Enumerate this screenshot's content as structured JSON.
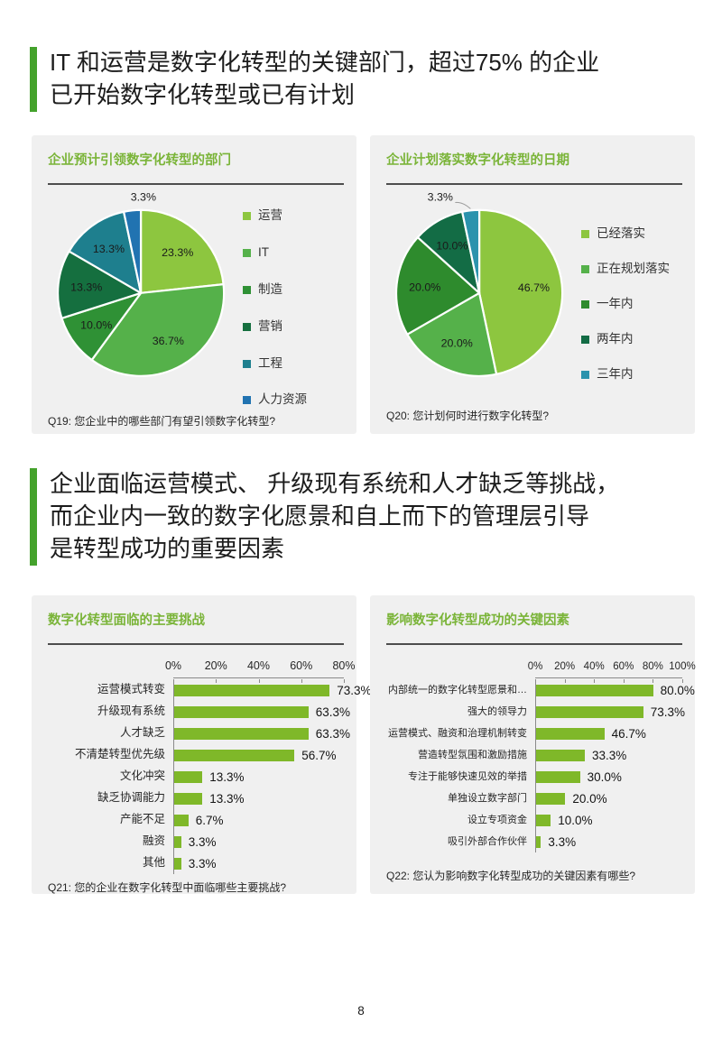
{
  "page": {
    "number": "8"
  },
  "colors": {
    "accent_bar": "#44a22c",
    "chart_title": "#7ab438",
    "card_background": "#f0f0f0",
    "bar_fill": "#7fb829",
    "axis_line": "#8a8a8a"
  },
  "headers": [
    {
      "text": "IT 和运营是数字化转型的关键部门，超过75% 的企业已开始数字化转型或已有计划",
      "lines": [
        "IT 和运营是数字化转型的关键部门，超过75% 的企业",
        "已开始数字化转型或已有计划"
      ]
    },
    {
      "text": "企业面临运营模式、升级现有系统和人才缺乏等挑战，而企业内一致的数字化愿景和自上而下的管理层引导是转型成功的重要因素",
      "lines": [
        "企业面临运营模式、 升级现有系统和人才缺乏等挑战，",
        "而企业内一致的数字化愿景和自上而下的管理层引导",
        "是转型成功的重要因素"
      ]
    }
  ],
  "chart_data": [
    {
      "id": "pie-departments",
      "type": "pie",
      "title": "企业预计引领数字化转型的部门",
      "footnote": "Q19: 您企业中的哪些部门有望引领数字化转型?",
      "legend_position": "right",
      "slices": [
        {
          "label": "运营",
          "value": 23.3,
          "display": "23.3%",
          "color": "#8dc63f"
        },
        {
          "label": "IT",
          "value": 36.7,
          "display": "36.7%",
          "color": "#55b14a"
        },
        {
          "label": "制造",
          "value": 10.0,
          "display": "10.0%",
          "color": "#2f9135"
        },
        {
          "label": "营销",
          "value": 13.3,
          "display": "13.3%",
          "color": "#156f3f"
        },
        {
          "label": "工程",
          "value": 13.3,
          "display": "13.3%",
          "color": "#1e7f8e"
        },
        {
          "label": "人力资源",
          "value": 3.3,
          "display": "3.3%",
          "color": "#2173b1",
          "label_outside": true
        }
      ]
    },
    {
      "id": "pie-timeline",
      "type": "pie",
      "title": "企业计划落实数字化转型的日期",
      "footnote": "Q20: 您计划何时进行数字化转型?",
      "legend_position": "right",
      "slices": [
        {
          "label": "已经落实",
          "value": 46.7,
          "display": "46.7%",
          "color": "#8dc63f"
        },
        {
          "label": "正在规划落实",
          "value": 20.0,
          "display": "20.0%",
          "color": "#55b14a"
        },
        {
          "label": "一年内",
          "value": 20.0,
          "display": "20.0%",
          "color": "#2e8b2d"
        },
        {
          "label": "两年内",
          "value": 10.0,
          "display": "10.0%",
          "color": "#136c45"
        },
        {
          "label": "三年内",
          "value": 3.3,
          "display": "3.3%",
          "color": "#2b93ad",
          "label_outside": true,
          "leader": true
        }
      ]
    },
    {
      "id": "bar-challenges",
      "type": "bar",
      "title": "数字化转型面临的主要挑战",
      "footnote": "Q21: 您的企业在数字化转型中面临哪些主要挑战?",
      "orientation": "horizontal",
      "categories": [
        "运营模式转变",
        "升级现有系统",
        "人才缺乏",
        "不清楚转型优先级",
        "文化冲突",
        "缺乏协调能力",
        "产能不足",
        "融资",
        "其他"
      ],
      "values": [
        73.3,
        63.3,
        63.3,
        56.7,
        13.3,
        13.3,
        6.7,
        3.3,
        3.3
      ],
      "value_labels": [
        "73.3%",
        "63.3%",
        "63.3%",
        "56.7%",
        "13.3%",
        "13.3%",
        "6.7%",
        "3.3%",
        "3.3%"
      ],
      "axis": {
        "max": 80,
        "tick_labels": [
          "0%",
          "20%",
          "40%",
          "60%",
          "80%"
        ]
      }
    },
    {
      "id": "bar-factors",
      "type": "bar",
      "title": "影响数字化转型成功的关键因素",
      "footnote": "Q22: 您认为影响数字化转型成功的关键因素有哪些?",
      "orientation": "horizontal",
      "categories": [
        "内部统一的数字化转型愿景和…",
        "强大的领导力",
        "运营模式、融资和治理机制转变",
        "营造转型氛围和激励措施",
        "专注于能够快速见效的举措",
        "单独设立数字部门",
        "设立专项资金",
        "吸引外部合作伙伴"
      ],
      "values": [
        80.0,
        73.3,
        46.7,
        33.3,
        30.0,
        20.0,
        10.0,
        3.3
      ],
      "value_labels": [
        "80.0%",
        "73.3%",
        "46.7%",
        "33.3%",
        "30.0%",
        "20.0%",
        "10.0%",
        "3.3%"
      ],
      "axis": {
        "max": 100,
        "tick_labels": [
          "0%",
          "20%",
          "40%",
          "60%",
          "80%",
          "100%"
        ]
      }
    }
  ]
}
